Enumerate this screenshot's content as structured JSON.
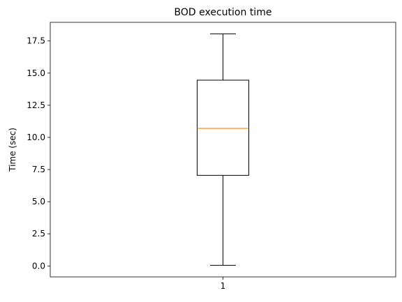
{
  "chart_data": {
    "type": "boxplot",
    "title": "BOD execution time",
    "xlabel": "",
    "ylabel": "Time (sec)",
    "categories": [
      "1"
    ],
    "boxes": [
      {
        "category": "1",
        "whisker_low": 0.05,
        "q1": 7.05,
        "median": 10.7,
        "q3": 14.45,
        "whisker_high": 18.05
      }
    ],
    "ylim": [
      -0.85,
      18.95
    ],
    "yticks": [
      0.0,
      2.5,
      5.0,
      7.5,
      10.0,
      12.5,
      15.0,
      17.5
    ],
    "ytick_labels": [
      "0.0",
      "2.5",
      "5.0",
      "7.5",
      "10.0",
      "12.5",
      "15.0",
      "17.5"
    ],
    "grid": false,
    "colors": {
      "box": "#000000",
      "median": "#ff7f0e"
    }
  }
}
